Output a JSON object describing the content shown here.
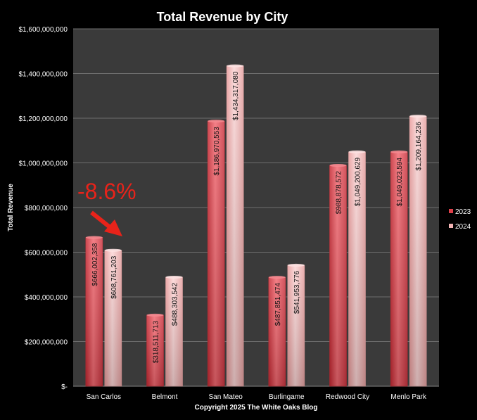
{
  "chart_data": {
    "type": "bar",
    "title": "Total Revenue by City",
    "ylabel": "Total Revenue",
    "xlabel": "Copyright 2025 The White Oaks Blog",
    "categories": [
      "San Carlos",
      "Belmont",
      "San Mateo",
      "Burlingame",
      "Redwood City",
      "Menlo Park"
    ],
    "series": [
      {
        "name": "2023",
        "color": "#e0404a",
        "values": [
          666002358,
          318511713,
          1186970553,
          487851474,
          988878572,
          1049023594
        ],
        "labels": [
          "$666,002,358",
          "$318,511,713",
          "$1,186,970,553",
          "$487,851,474",
          "$988,878,572",
          "$1,049,023,594"
        ]
      },
      {
        "name": "2024",
        "color": "#f2b3b3",
        "values": [
          608761203,
          488303542,
          1434317080,
          541953776,
          1049200629,
          1209164236
        ],
        "labels": [
          "$608,761,203",
          "$488,303,542",
          "$1,434,317,080",
          "$541,953,776",
          "$1,049,200,629",
          "$1,209,164,236"
        ]
      }
    ],
    "ylim": [
      0,
      1600000000
    ],
    "yticks": [
      0,
      200000000,
      400000000,
      600000000,
      800000000,
      1000000000,
      1200000000,
      1400000000,
      1600000000
    ],
    "ytick_labels": [
      "$-",
      "$200,000,000",
      "$400,000,000",
      "$600,000,000",
      "$800,000,000",
      "$1,000,000,000",
      "$1,200,000,000",
      "$1,400,000,000",
      "$1,600,000,000"
    ],
    "grid": true,
    "legend": "right",
    "background": "#3a3a3a",
    "annotation": {
      "text": "-8.6%",
      "color": "#e8231a",
      "target_category": "San Carlos"
    }
  }
}
